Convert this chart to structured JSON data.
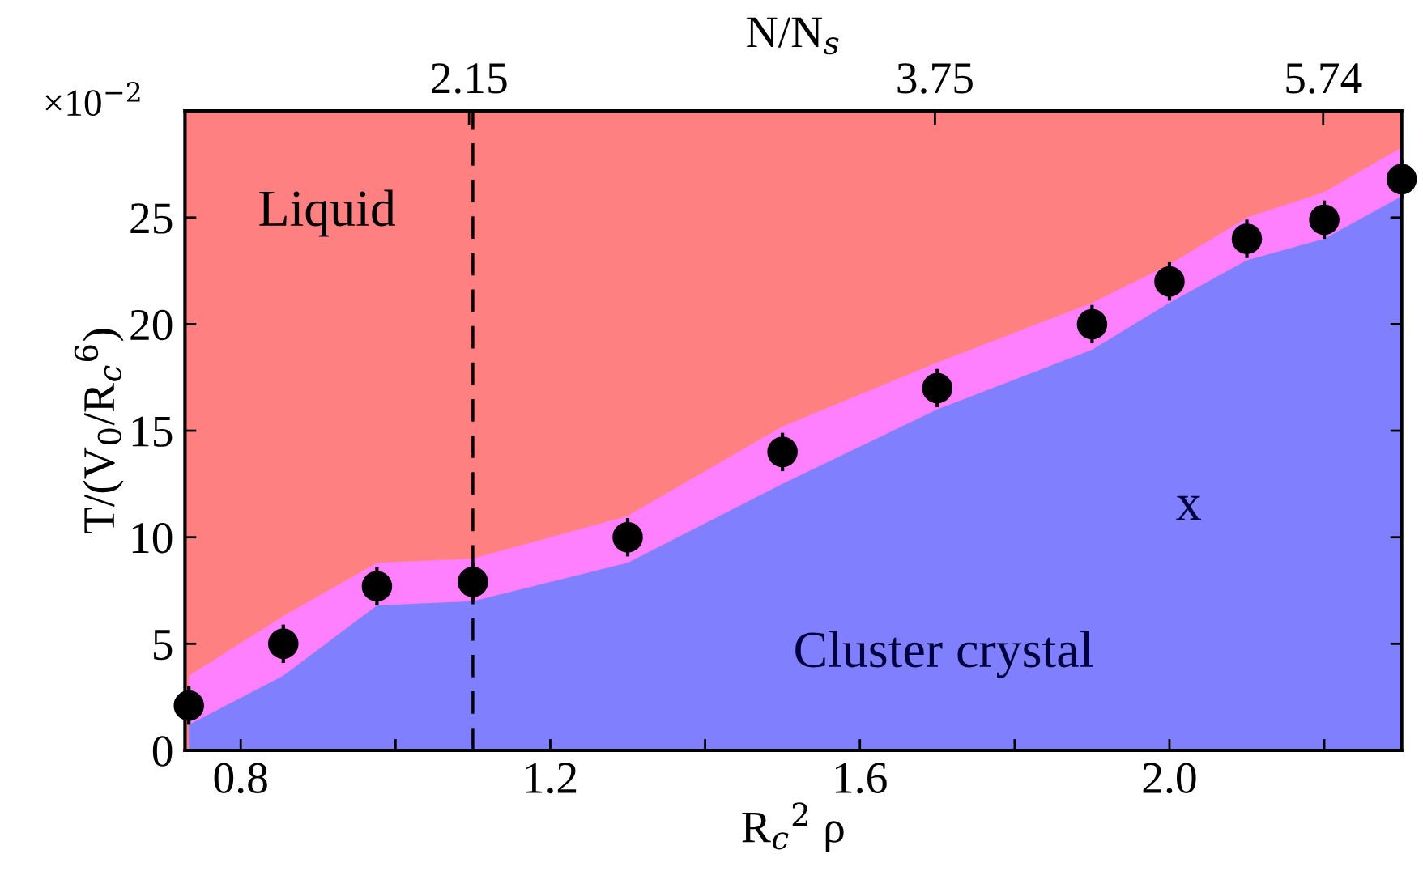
{
  "chart_data": {
    "type": "scatter",
    "xlabel": "R$_{c}$$^{2}$ ρ",
    "ylabel": "T/(V$_{0}$/R$_{c}$$^{6}$)",
    "xlim": [
      0.728,
      2.3
    ],
    "ylim": [
      0,
      30
    ],
    "xticks": [
      0.8,
      {
        "value": 1.0,
        "label": null
      },
      1.2,
      {
        "value": 1.4,
        "label": null
      },
      1.6,
      {
        "value": 1.8,
        "label": null
      },
      "2.0",
      {
        "value": 2.2,
        "label": null
      }
    ],
    "x2label": "N/N$_{s}$",
    "yticks": [
      0,
      5,
      10,
      15,
      20,
      25
    ],
    "grid": false,
    "bands": [
      {
        "axis": "x",
        "from": 0.728,
        "to": 2.3,
        "color": "#ff8080"
      }
    ],
    "ref_lines": [
      {
        "axis": "x",
        "value": 1.1,
        "color": "#000000",
        "line_style": "dashed"
      }
    ],
    "series": [
      {
        "type": "area",
        "color": "#ff80ff",
        "x": [
          0.733,
          0.855,
          0.976,
          1.1,
          1.3,
          1.5,
          1.7,
          1.9,
          2.0,
          2.1,
          2.2,
          2.3
        ],
        "values": [
          3.5,
          6.3,
          8.8,
          9.0,
          11.0,
          15.2,
          18.2,
          21.0,
          22.8,
          25.0,
          26.2,
          28.3
        ]
      },
      {
        "type": "area",
        "color": "#8080ff",
        "x": [
          0.733,
          0.855,
          0.976,
          1.1,
          1.3,
          1.5,
          1.7,
          1.9,
          2.0,
          2.1,
          2.2,
          2.3
        ],
        "values": [
          1.2,
          3.5,
          6.8,
          7.0,
          8.8,
          12.5,
          16.0,
          18.8,
          21.0,
          23.0,
          24.0,
          26.0
        ]
      },
      {
        "color": "#000000",
        "marker": "circle",
        "x": [
          0.733,
          0.855,
          0.976,
          1.1,
          1.3,
          1.5,
          1.7,
          1.9,
          2.0,
          2.1,
          2.2,
          2.3
        ],
        "values": [
          2.1,
          5.0,
          7.7,
          7.9,
          10.0,
          14.0,
          17.0,
          20.0,
          22.0,
          24.0,
          24.9,
          26.8
        ],
        "errors": [
          0.9,
          0.9,
          0.9,
          0.9,
          0.9,
          0.9,
          0.9,
          0.9,
          0.9,
          0.9,
          0.9,
          0.9
        ]
      }
    ],
    "annotations": [
      "Liquid",
      "Cluster crystal",
      "x",
      "×10$^{−2}$",
      "2.15",
      "3.75",
      "5.74"
    ]
  }
}
